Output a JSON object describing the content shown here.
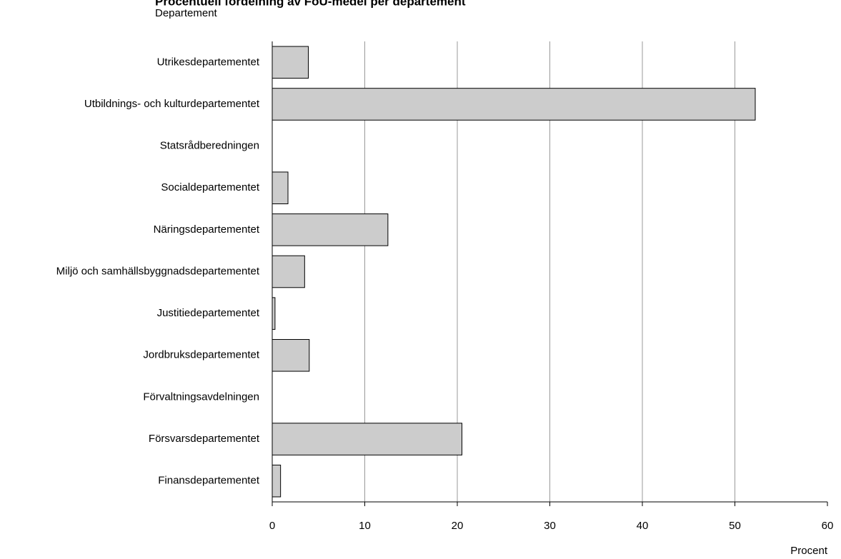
{
  "chart_data": {
    "type": "bar",
    "orientation": "horizontal",
    "title": "Procentuell fördelning av FoU-medel per departement",
    "subtitle": "Departement",
    "x_label": "Procent",
    "categories": [
      "Utrikesdepartementet",
      "Utbildnings- och kulturdepartementet",
      "Statsrådberedningen",
      "Socialdepartementet",
      "Näringsdepartementet",
      "Miljö och samhällsbyggnadsdepartementet",
      "Justitiedepartementet",
      "Jordbruksdepartementet",
      "Förvaltningsavdelningen",
      "Försvarsdepartementet",
      "Finansdepartementet"
    ],
    "values": [
      3.9,
      52.2,
      0,
      1.7,
      12.5,
      3.5,
      0.3,
      4.0,
      0,
      20.5,
      0.9
    ],
    "color": "#cccccc",
    "xlim": [
      0,
      60
    ],
    "xticks": [
      0,
      10,
      20,
      30,
      40,
      50,
      60
    ],
    "grid": true
  }
}
